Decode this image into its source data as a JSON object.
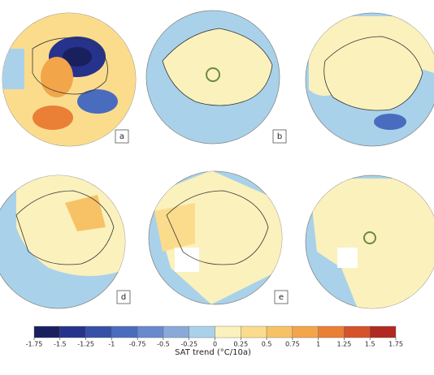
{
  "panels": [
    {
      "label": "a"
    },
    {
      "label": "b"
    },
    {
      "label": "d"
    },
    {
      "label": "e"
    }
  ],
  "colorbar": {
    "label": "SAT trend (°C/10a)",
    "ticks": [
      -1.75,
      -1.5,
      -1.25,
      -1,
      -0.75,
      -0.5,
      -0.25,
      0,
      0.25,
      0.5,
      0.75,
      1,
      1.25,
      1.5,
      1.75
    ],
    "colors": [
      "#1a1f5e",
      "#26338c",
      "#3650a8",
      "#4a6cbf",
      "#6889cc",
      "#8aa9d9",
      "#a9d2ea",
      "#fbf1bd",
      "#fbdc8d",
      "#f7c266",
      "#f3a54a",
      "#ea7f36",
      "#d5522b",
      "#b02a22"
    ]
  }
}
